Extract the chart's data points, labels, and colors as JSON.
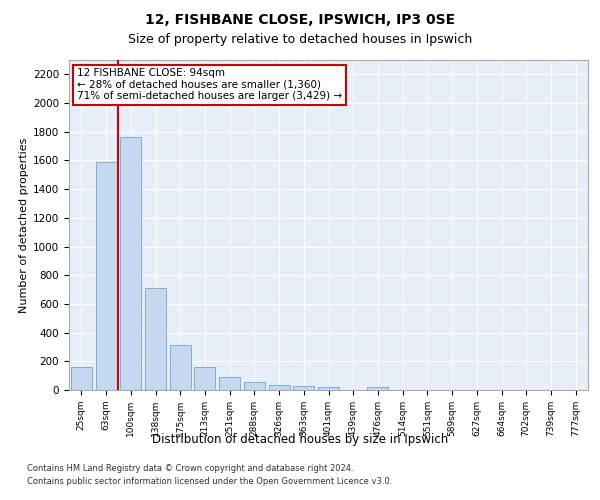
{
  "title1": "12, FISHBANE CLOSE, IPSWICH, IP3 0SE",
  "title2": "Size of property relative to detached houses in Ipswich",
  "xlabel": "Distribution of detached houses by size in Ipswich",
  "ylabel": "Number of detached properties",
  "categories": [
    "25sqm",
    "63sqm",
    "100sqm",
    "138sqm",
    "175sqm",
    "213sqm",
    "251sqm",
    "288sqm",
    "326sqm",
    "363sqm",
    "401sqm",
    "439sqm",
    "476sqm",
    "514sqm",
    "551sqm",
    "589sqm",
    "627sqm",
    "664sqm",
    "702sqm",
    "739sqm",
    "777sqm"
  ],
  "values": [
    160,
    1590,
    1760,
    710,
    315,
    160,
    88,
    55,
    35,
    25,
    20,
    0,
    20,
    0,
    0,
    0,
    0,
    0,
    0,
    0,
    0
  ],
  "bar_color": "#c5d8f0",
  "bar_edge_color": "#7bafd4",
  "redline_x": 1.5,
  "annotation_title": "12 FISHBANE CLOSE: 94sqm",
  "annotation_line1": "← 28% of detached houses are smaller (1,360)",
  "annotation_line2": "71% of semi-detached houses are larger (3,429) →",
  "footer1": "Contains HM Land Registry data © Crown copyright and database right 2024.",
  "footer2": "Contains public sector information licensed under the Open Government Licence v3.0.",
  "ylim": [
    0,
    2300
  ],
  "yticks": [
    0,
    200,
    400,
    600,
    800,
    1000,
    1200,
    1400,
    1600,
    1800,
    2000,
    2200
  ],
  "fig_bg_color": "#ffffff",
  "plot_bg_color": "#e8eef8",
  "grid_color": "#ffffff",
  "annotation_box_color": "#ffffff",
  "annotation_box_edge": "#cc0000",
  "redline_color": "#cc0000",
  "title1_fontsize": 10,
  "title2_fontsize": 9
}
